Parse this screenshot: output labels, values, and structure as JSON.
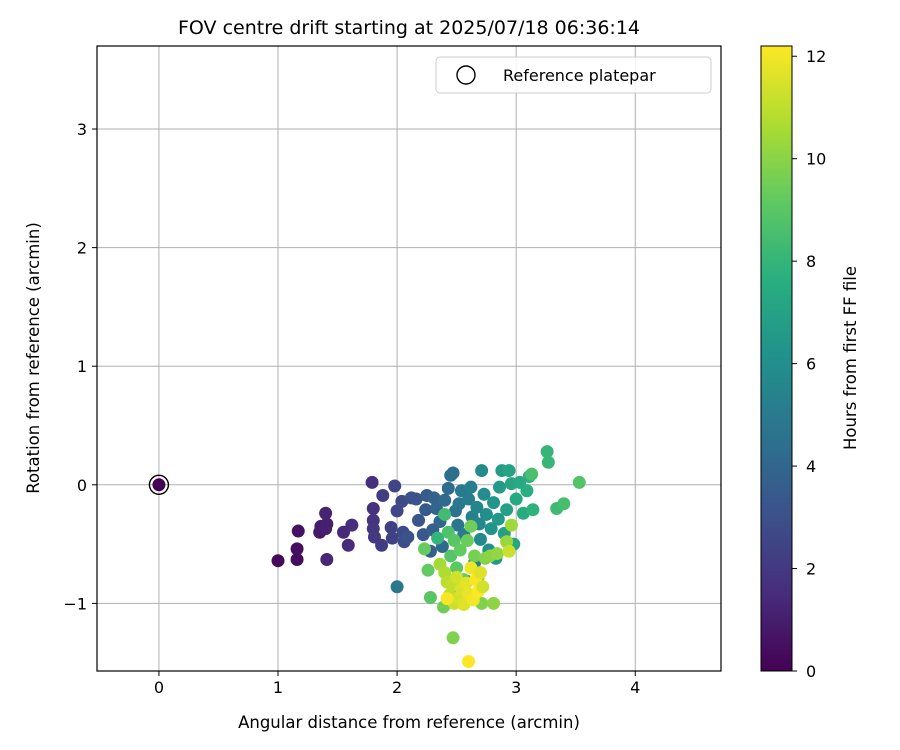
{
  "chart_data": {
    "type": "scatter",
    "title": "FOV centre drift starting at 2025/07/18 06:36:14",
    "xlabel": "Angular distance from reference (arcmin)",
    "ylabel": "Rotation from reference (arcmin)",
    "xlim": [
      -0.52,
      4.72
    ],
    "ylim": [
      -1.57,
      3.7
    ],
    "xticks": [
      0,
      1,
      2,
      3,
      4
    ],
    "yticks": [
      -1,
      0,
      1,
      2,
      3
    ],
    "grid": true,
    "legend": {
      "position": "top-right",
      "entries": [
        "Reference platepar"
      ]
    },
    "reference_point": {
      "x": 0,
      "y": 0
    },
    "colorbar": {
      "label": "Hours from first FF file",
      "colormap": "viridis",
      "range": [
        0,
        12.2
      ],
      "ticks": [
        0,
        2,
        4,
        6,
        8,
        10,
        12
      ]
    },
    "points": [
      {
        "x": 0.0,
        "y": 0.0,
        "c": 0.0
      },
      {
        "x": 1.0,
        "y": -0.64,
        "c": 0.3
      },
      {
        "x": 1.16,
        "y": -0.63,
        "c": 0.4
      },
      {
        "x": 1.16,
        "y": -0.54,
        "c": 0.5
      },
      {
        "x": 1.17,
        "y": -0.39,
        "c": 0.6
      },
      {
        "x": 1.35,
        "y": -0.4,
        "c": 0.8
      },
      {
        "x": 1.36,
        "y": -0.35,
        "c": 0.9
      },
      {
        "x": 1.4,
        "y": -0.37,
        "c": 1.0
      },
      {
        "x": 1.41,
        "y": -0.33,
        "c": 1.1
      },
      {
        "x": 1.4,
        "y": -0.24,
        "c": 1.2
      },
      {
        "x": 1.41,
        "y": -0.63,
        "c": 1.3
      },
      {
        "x": 1.55,
        "y": -0.4,
        "c": 1.4
      },
      {
        "x": 1.59,
        "y": -0.51,
        "c": 1.5
      },
      {
        "x": 1.62,
        "y": -0.34,
        "c": 1.6
      },
      {
        "x": 1.79,
        "y": 0.02,
        "c": 1.6
      },
      {
        "x": 1.8,
        "y": -0.2,
        "c": 1.7
      },
      {
        "x": 1.8,
        "y": -0.3,
        "c": 1.8
      },
      {
        "x": 1.8,
        "y": -0.37,
        "c": 1.9
      },
      {
        "x": 1.81,
        "y": -0.44,
        "c": 2.0
      },
      {
        "x": 1.87,
        "y": -0.51,
        "c": 2.1
      },
      {
        "x": 1.88,
        "y": -0.09,
        "c": 2.2
      },
      {
        "x": 1.95,
        "y": -0.36,
        "c": 2.3
      },
      {
        "x": 1.96,
        "y": -0.45,
        "c": 2.4
      },
      {
        "x": 1.98,
        "y": -0.01,
        "c": 2.5
      },
      {
        "x": 2.0,
        "y": -0.22,
        "c": 2.6
      },
      {
        "x": 2.04,
        "y": -0.14,
        "c": 2.7
      },
      {
        "x": 2.05,
        "y": -0.4,
        "c": 2.8
      },
      {
        "x": 2.06,
        "y": -0.48,
        "c": 2.9
      },
      {
        "x": 2.09,
        "y": -0.44,
        "c": 3.0
      },
      {
        "x": 2.12,
        "y": -0.11,
        "c": 3.0
      },
      {
        "x": 2.16,
        "y": -0.12,
        "c": 3.1
      },
      {
        "x": 2.18,
        "y": -0.3,
        "c": 3.2
      },
      {
        "x": 2.22,
        "y": -0.42,
        "c": 3.3
      },
      {
        "x": 2.24,
        "y": -0.21,
        "c": 3.4
      },
      {
        "x": 2.25,
        "y": -0.09,
        "c": 3.5
      },
      {
        "x": 2.28,
        "y": -0.56,
        "c": 3.6
      },
      {
        "x": 2.3,
        "y": -0.38,
        "c": 3.7
      },
      {
        "x": 2.31,
        "y": -0.11,
        "c": 3.8
      },
      {
        "x": 2.33,
        "y": -0.2,
        "c": 3.9
      },
      {
        "x": 2.36,
        "y": -0.31,
        "c": 4.0
      },
      {
        "x": 2.38,
        "y": -0.52,
        "c": 4.1
      },
      {
        "x": 2.4,
        "y": -0.13,
        "c": 4.2
      },
      {
        "x": 2.43,
        "y": -0.03,
        "c": 4.3
      },
      {
        "x": 2.45,
        "y": 0.08,
        "c": 4.4
      },
      {
        "x": 2.47,
        "y": 0.1,
        "c": 4.5
      },
      {
        "x": 2.49,
        "y": -0.22,
        "c": 4.6
      },
      {
        "x": 2.51,
        "y": -0.34,
        "c": 4.7
      },
      {
        "x": 2.52,
        "y": -0.16,
        "c": 4.8
      },
      {
        "x": 2.54,
        "y": -0.05,
        "c": 4.9
      },
      {
        "x": 2.56,
        "y": -0.42,
        "c": 5.0
      },
      {
        "x": 2.58,
        "y": -0.81,
        "c": 5.0
      },
      {
        "x": 2.6,
        "y": -0.12,
        "c": 5.1
      },
      {
        "x": 2.62,
        "y": -0.02,
        "c": 5.2
      },
      {
        "x": 2.63,
        "y": -0.27,
        "c": 5.3
      },
      {
        "x": 2.65,
        "y": -0.66,
        "c": 5.4
      },
      {
        "x": 2.67,
        "y": -0.19,
        "c": 5.5
      },
      {
        "x": 2.69,
        "y": -0.33,
        "c": 5.6
      },
      {
        "x": 2.7,
        "y": -0.46,
        "c": 5.7
      },
      {
        "x": 2.71,
        "y": 0.12,
        "c": 5.8
      },
      {
        "x": 2.73,
        "y": -0.08,
        "c": 5.9
      },
      {
        "x": 2.75,
        "y": -0.25,
        "c": 6.0
      },
      {
        "x": 2.77,
        "y": -0.55,
        "c": 6.1
      },
      {
        "x": 2.79,
        "y": -0.37,
        "c": 6.2
      },
      {
        "x": 2.81,
        "y": -0.15,
        "c": 6.3
      },
      {
        "x": 2.83,
        "y": -0.62,
        "c": 6.4
      },
      {
        "x": 2.85,
        "y": -0.29,
        "c": 6.5
      },
      {
        "x": 2.86,
        "y": -0.02,
        "c": 6.6
      },
      {
        "x": 2.88,
        "y": 0.12,
        "c": 6.7
      },
      {
        "x": 2.9,
        "y": -0.41,
        "c": 6.8
      },
      {
        "x": 2.92,
        "y": -0.21,
        "c": 6.9
      },
      {
        "x": 2.94,
        "y": 0.12,
        "c": 7.0
      },
      {
        "x": 2.96,
        "y": 0.01,
        "c": 7.1
      },
      {
        "x": 2.98,
        "y": -0.5,
        "c": 7.2
      },
      {
        "x": 2.0,
        "y": -0.86,
        "c": 4.8
      },
      {
        "x": 2.47,
        "y": -0.98,
        "c": 6.0
      },
      {
        "x": 2.51,
        "y": -0.91,
        "c": 6.3
      },
      {
        "x": 3.0,
        "y": -0.12,
        "c": 7.3
      },
      {
        "x": 3.03,
        "y": 0.02,
        "c": 7.4
      },
      {
        "x": 3.06,
        "y": -0.24,
        "c": 7.5
      },
      {
        "x": 3.09,
        "y": -0.05,
        "c": 7.6
      },
      {
        "x": 3.11,
        "y": 0.07,
        "c": 7.7
      },
      {
        "x": 3.14,
        "y": -0.21,
        "c": 7.8
      },
      {
        "x": 3.26,
        "y": 0.28,
        "c": 8.0
      },
      {
        "x": 3.27,
        "y": 0.19,
        "c": 8.1
      },
      {
        "x": 3.34,
        "y": -0.2,
        "c": 8.3
      },
      {
        "x": 3.4,
        "y": -0.16,
        "c": 8.5
      },
      {
        "x": 3.53,
        "y": 0.02,
        "c": 8.8
      },
      {
        "x": 3.13,
        "y": 0.09,
        "c": 8.6
      },
      {
        "x": 2.34,
        "y": -0.45,
        "c": 8.0
      },
      {
        "x": 2.4,
        "y": -0.25,
        "c": 8.4
      },
      {
        "x": 2.43,
        "y": -0.4,
        "c": 8.7
      },
      {
        "x": 2.45,
        "y": -0.6,
        "c": 8.9
      },
      {
        "x": 2.48,
        "y": -0.47,
        "c": 9.0
      },
      {
        "x": 2.5,
        "y": -0.7,
        "c": 9.1
      },
      {
        "x": 2.53,
        "y": -0.55,
        "c": 9.2
      },
      {
        "x": 2.56,
        "y": -0.8,
        "c": 9.3
      },
      {
        "x": 2.59,
        "y": -0.47,
        "c": 9.4
      },
      {
        "x": 2.62,
        "y": -0.35,
        "c": 9.5
      },
      {
        "x": 2.65,
        "y": -0.6,
        "c": 9.6
      },
      {
        "x": 2.68,
        "y": -0.78,
        "c": 9.7
      },
      {
        "x": 2.71,
        "y": -1.0,
        "c": 9.8
      },
      {
        "x": 2.74,
        "y": -0.62,
        "c": 9.9
      },
      {
        "x": 2.78,
        "y": -0.6,
        "c": 10.0
      },
      {
        "x": 2.81,
        "y": -1.0,
        "c": 10.1
      },
      {
        "x": 2.84,
        "y": -0.58,
        "c": 10.2
      },
      {
        "x": 2.92,
        "y": -0.48,
        "c": 10.3
      },
      {
        "x": 2.96,
        "y": -0.34,
        "c": 10.4
      },
      {
        "x": 2.28,
        "y": -0.95,
        "c": 9.0
      },
      {
        "x": 2.26,
        "y": -0.72,
        "c": 9.2
      },
      {
        "x": 2.39,
        "y": -1.03,
        "c": 9.5
      },
      {
        "x": 2.47,
        "y": -1.29,
        "c": 9.8
      },
      {
        "x": 2.23,
        "y": -0.54,
        "c": 9.3
      },
      {
        "x": 2.36,
        "y": -0.67,
        "c": 10.5
      },
      {
        "x": 2.4,
        "y": -0.74,
        "c": 10.7
      },
      {
        "x": 2.42,
        "y": -0.82,
        "c": 10.9
      },
      {
        "x": 2.44,
        "y": -0.93,
        "c": 11.0
      },
      {
        "x": 2.46,
        "y": -0.85,
        "c": 11.1
      },
      {
        "x": 2.48,
        "y": -1.0,
        "c": 11.2
      },
      {
        "x": 2.5,
        "y": -0.78,
        "c": 11.3
      },
      {
        "x": 2.52,
        "y": -0.95,
        "c": 11.4
      },
      {
        "x": 2.54,
        "y": -0.88,
        "c": 11.5
      },
      {
        "x": 2.56,
        "y": -1.01,
        "c": 11.6
      },
      {
        "x": 2.58,
        "y": -0.83,
        "c": 11.7
      },
      {
        "x": 2.6,
        "y": -0.92,
        "c": 11.8
      },
      {
        "x": 2.62,
        "y": -0.7,
        "c": 11.9
      },
      {
        "x": 2.64,
        "y": -0.97,
        "c": 12.0
      },
      {
        "x": 2.66,
        "y": -0.8,
        "c": 12.1
      },
      {
        "x": 2.68,
        "y": -0.9,
        "c": 12.2
      },
      {
        "x": 2.7,
        "y": -0.74,
        "c": 11.6
      },
      {
        "x": 2.72,
        "y": -0.86,
        "c": 11.4
      },
      {
        "x": 2.6,
        "y": -1.49,
        "c": 12.2
      },
      {
        "x": 2.94,
        "y": -0.56,
        "c": 11.2
      },
      {
        "x": 2.42,
        "y": -0.96,
        "c": 12.1
      }
    ]
  }
}
